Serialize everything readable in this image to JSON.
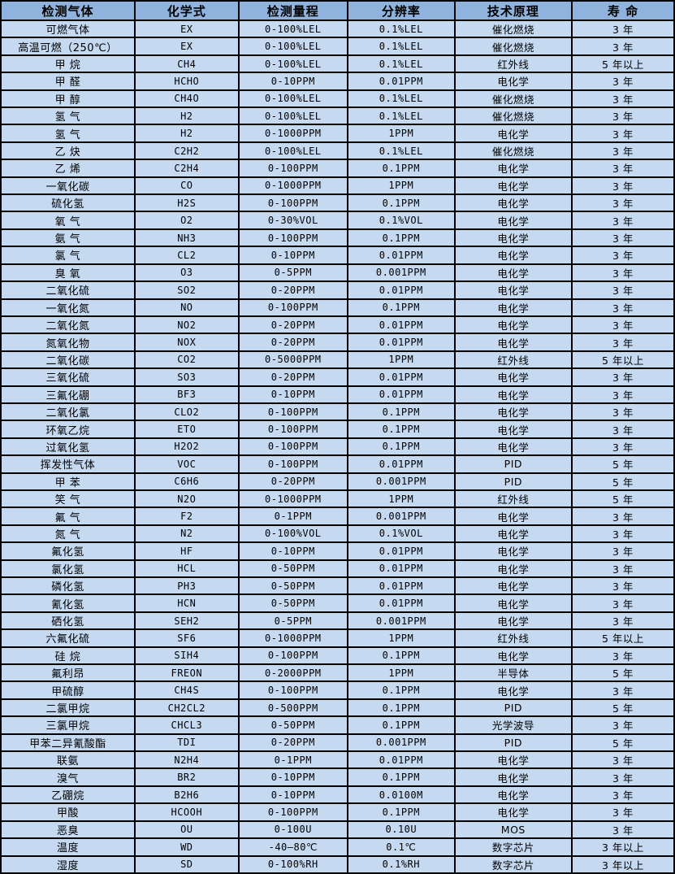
{
  "colors": {
    "header_bg": "#8FB3DC",
    "row_bg": "#C5D9F1",
    "grid_border": "#000000",
    "text": "#000000"
  },
  "table": {
    "columns": [
      "检测气体",
      "化学式",
      "检测量程",
      "分辨率",
      "技术原理",
      "寿 命"
    ],
    "cell_roles": [
      "gas-name-cell",
      "formula-cell",
      "range-cell",
      "resolution-cell",
      "principle-cell",
      "lifespan-cell"
    ],
    "rows": [
      [
        "可燃气体",
        "EX",
        "0-100%LEL",
        "0.1%LEL",
        "催化燃烧",
        "3 年"
      ],
      [
        "高温可燃（250℃）",
        "EX",
        "0-100%LEL",
        "0.1%LEL",
        "催化燃烧",
        "3 年"
      ],
      [
        "甲 烷",
        "CH4",
        "0-100%LEL",
        "0.1%LEL",
        "红外线",
        "5 年以上"
      ],
      [
        "甲 醛",
        "HCHO",
        "0-10PPM",
        "0.01PPM",
        "电化学",
        "3 年"
      ],
      [
        "甲 醇",
        "CH4O",
        "0-100%LEL",
        "0.1%LEL",
        "催化燃烧",
        "3 年"
      ],
      [
        "氢 气",
        "H2",
        "0-100%LEL",
        "0.1%LEL",
        "催化燃烧",
        "3 年"
      ],
      [
        "氢 气",
        "H2",
        "0-1000PPM",
        "1PPM",
        "电化学",
        "3 年"
      ],
      [
        "乙 炔",
        "C2H2",
        "0-100%LEL",
        "0.1%LEL",
        "催化燃烧",
        "3 年"
      ],
      [
        "乙 烯",
        "C2H4",
        "0-100PPM",
        "0.1PPM",
        "电化学",
        "3 年"
      ],
      [
        "一氧化碳",
        "CO",
        "0-1000PPM",
        "1PPM",
        "电化学",
        "3 年"
      ],
      [
        "硫化氢",
        "H2S",
        "0-100PPM",
        "0.1PPM",
        "电化学",
        "3 年"
      ],
      [
        "氧 气",
        "O2",
        "0-30%VOL",
        "0.1%VOL",
        "电化学",
        "3 年"
      ],
      [
        "氨 气",
        "NH3",
        "0-100PPM",
        "0.1PPM",
        "电化学",
        "3 年"
      ],
      [
        "氯 气",
        "CL2",
        "0-10PPM",
        "0.01PPM",
        "电化学",
        "3 年"
      ],
      [
        "臭 氧",
        "O3",
        "0-5PPM",
        "0.001PPM",
        "电化学",
        "3 年"
      ],
      [
        "二氧化硫",
        "SO2",
        "0-20PPM",
        "0.01PPM",
        "电化学",
        "3 年"
      ],
      [
        "一氧化氮",
        "NO",
        "0-100PPM",
        "0.1PPM",
        "电化学",
        "3 年"
      ],
      [
        "二氧化氮",
        "NO2",
        "0-20PPM",
        "0.01PPM",
        "电化学",
        "3 年"
      ],
      [
        "氮氧化物",
        "NOX",
        "0-20PPM",
        "0.01PPM",
        "电化学",
        "3 年"
      ],
      [
        "二氧化碳",
        "CO2",
        "0-5000PPM",
        "1PPM",
        "红外线",
        "5 年以上"
      ],
      [
        "三氧化硫",
        "SO3",
        "0-20PPM",
        "0.01PPM",
        "电化学",
        "3 年"
      ],
      [
        "三氟化硼",
        "BF3",
        "0-10PPM",
        "0.01PPM",
        "电化学",
        "3 年"
      ],
      [
        "二氧化氯",
        "CLO2",
        "0-100PPM",
        "0.1PPM",
        "电化学",
        "3 年"
      ],
      [
        "环氧乙烷",
        "ETO",
        "0-100PPM",
        "0.1PPM",
        "电化学",
        "3 年"
      ],
      [
        "过氧化氢",
        "H2O2",
        "0-100PPM",
        "0.1PPM",
        "电化学",
        "3 年"
      ],
      [
        "挥发性气体",
        "VOC",
        "0-100PPM",
        "0.01PPM",
        "PID",
        "5 年"
      ],
      [
        "甲 苯",
        "C6H6",
        "0-20PPM",
        "0.001PPM",
        "PID",
        "5 年"
      ],
      [
        "笑 气",
        "N2O",
        "0-1000PPM",
        "1PPM",
        "红外线",
        "5 年"
      ],
      [
        "氟 气",
        "F2",
        "0-1PPM",
        "0.001PPM",
        "电化学",
        "3 年"
      ],
      [
        "氮 气",
        "N2",
        "0-100%VOL",
        "0.1%VOL",
        "电化学",
        "3 年"
      ],
      [
        "氟化氢",
        "HF",
        "0-10PPM",
        "0.01PPM",
        "电化学",
        "3 年"
      ],
      [
        "氯化氢",
        "HCL",
        "0-50PPM",
        "0.01PPM",
        "电化学",
        "3 年"
      ],
      [
        "磷化氢",
        "PH3",
        "0-50PPM",
        "0.01PPM",
        "电化学",
        "3 年"
      ],
      [
        "氰化氢",
        "HCN",
        "0-50PPM",
        "0.01PPM",
        "电化学",
        "3 年"
      ],
      [
        "硒化氢",
        "SEH2",
        "0-5PPM",
        "0.001PPM",
        "电化学",
        "3 年"
      ],
      [
        "六氟化硫",
        "SF6",
        "0-1000PPM",
        "1PPM",
        "红外线",
        "5 年以上"
      ],
      [
        "硅 烷",
        "SIH4",
        "0-100PPM",
        "0.1PPM",
        "电化学",
        "3 年"
      ],
      [
        "氟利昂",
        "FREON",
        "0-2000PPM",
        "1PPM",
        "半导体",
        "5 年"
      ],
      [
        "甲硫醇",
        "CH4S",
        "0-100PPM",
        "0.1PPM",
        "电化学",
        "3 年"
      ],
      [
        "二氯甲烷",
        "CH2CL2",
        "0-500PPM",
        "0.1PPM",
        "PID",
        "5 年"
      ],
      [
        "三氯甲烷",
        "CHCL3",
        "0-50PPM",
        "0.1PPM",
        "光学波导",
        "3 年"
      ],
      [
        "甲苯二异氰酸酯",
        "TDI",
        "0-20PPM",
        "0.001PPM",
        "PID",
        "5 年"
      ],
      [
        "联氨",
        "N2H4",
        "0-1PPM",
        "0.01PPM",
        "电化学",
        "3 年"
      ],
      [
        "溴气",
        "BR2",
        "0-10PPM",
        "0.1PPM",
        "电化学",
        "3 年"
      ],
      [
        "乙硼烷",
        "B2H6",
        "0-10PPM",
        "0.0100M",
        "电化学",
        "3 年"
      ],
      [
        "甲酸",
        "HCOOH",
        "0-100PPM",
        "0.1PPM",
        "电化学",
        "3 年"
      ],
      [
        "恶臭",
        "OU",
        "0-100U",
        "0.10U",
        "MOS",
        "3 年"
      ],
      [
        "温度",
        "WD",
        "-40—80℃",
        "0.1℃",
        "数字芯片",
        "3 年以上"
      ],
      [
        "湿度",
        "SD",
        "0-100%RH",
        "0.1%RH",
        "数字芯片",
        "3 年以上"
      ]
    ]
  }
}
